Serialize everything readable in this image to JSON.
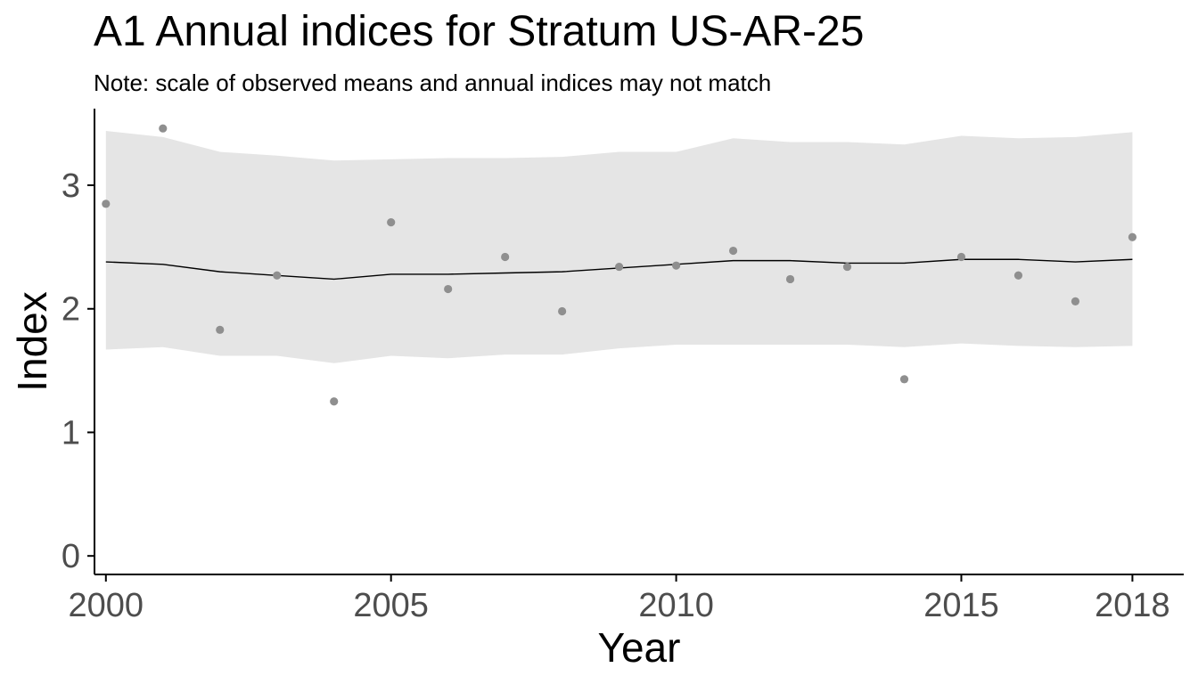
{
  "chart_data": {
    "type": "line",
    "title": "A1 Annual indices for Stratum US-AR-25",
    "subtitle": "Note: scale of observed means and annual indices may not match",
    "xlabel": "Year",
    "ylabel": "Index",
    "xlim": [
      1999.8,
      2018.9
    ],
    "ylim": [
      -0.15,
      3.62
    ],
    "x_ticks": [
      2000,
      2005,
      2010,
      2015,
      2018
    ],
    "y_ticks": [
      0,
      1,
      2,
      3
    ],
    "grid": false,
    "legend": "none",
    "colors": {
      "ribbon": "#e5e5e5",
      "line": "#000000",
      "points": "#8f8f8f",
      "axis": "#000000",
      "tick_label": "#4d4d4d"
    },
    "series": [
      {
        "type": "ribbon",
        "x": [
          2000,
          2001,
          2002,
          2003,
          2004,
          2005,
          2006,
          2007,
          2008,
          2009,
          2010,
          2011,
          2012,
          2013,
          2014,
          2015,
          2016,
          2017,
          2018
        ],
        "lower": [
          1.67,
          1.69,
          1.62,
          1.62,
          1.56,
          1.62,
          1.6,
          1.63,
          1.63,
          1.68,
          1.71,
          1.71,
          1.71,
          1.71,
          1.69,
          1.72,
          1.7,
          1.69,
          1.7
        ],
        "upper": [
          3.44,
          3.39,
          3.27,
          3.24,
          3.2,
          3.21,
          3.22,
          3.22,
          3.23,
          3.27,
          3.27,
          3.38,
          3.35,
          3.35,
          3.33,
          3.4,
          3.38,
          3.39,
          3.43
        ]
      },
      {
        "type": "line",
        "x": [
          2000,
          2001,
          2002,
          2003,
          2004,
          2005,
          2006,
          2007,
          2008,
          2009,
          2010,
          2011,
          2012,
          2013,
          2014,
          2015,
          2016,
          2017,
          2018
        ],
        "values": [
          2.38,
          2.36,
          2.3,
          2.27,
          2.24,
          2.28,
          2.28,
          2.29,
          2.3,
          2.33,
          2.36,
          2.39,
          2.39,
          2.37,
          2.37,
          2.4,
          2.4,
          2.38,
          2.4
        ]
      },
      {
        "type": "scatter",
        "x": [
          2000,
          2001,
          2002,
          2003,
          2004,
          2005,
          2006,
          2007,
          2008,
          2009,
          2010,
          2011,
          2012,
          2013,
          2014,
          2015,
          2016,
          2017,
          2018
        ],
        "values": [
          2.85,
          3.46,
          1.83,
          2.27,
          1.25,
          2.7,
          2.16,
          2.42,
          1.98,
          2.34,
          2.35,
          2.47,
          2.24,
          2.34,
          1.43,
          2.42,
          2.27,
          2.06,
          2.58
        ]
      }
    ]
  }
}
